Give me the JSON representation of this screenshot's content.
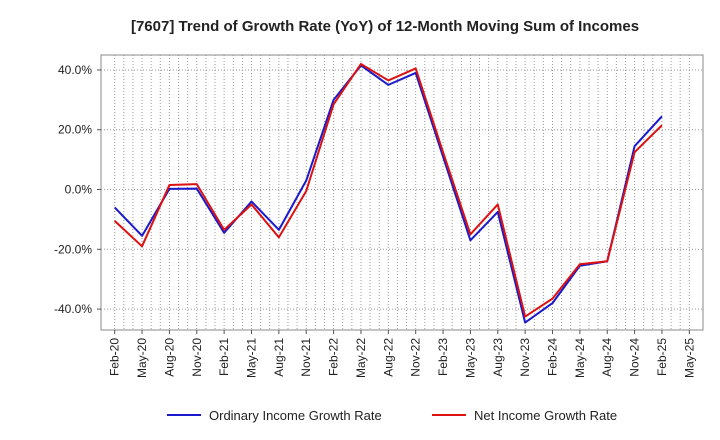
{
  "chart_data": {
    "type": "line",
    "title": "[7607]  Trend of Growth Rate (YoY) of 12-Month Moving Sum of Incomes",
    "xlabel": "",
    "ylabel": "",
    "x_tick_labels": [
      "Feb-20",
      "May-20",
      "Aug-20",
      "Nov-20",
      "Feb-21",
      "May-21",
      "Aug-21",
      "Nov-21",
      "Feb-22",
      "May-22",
      "Aug-22",
      "Nov-22",
      "Feb-23",
      "May-23",
      "Aug-23",
      "Nov-23",
      "Feb-24",
      "May-24",
      "Aug-24",
      "Nov-24",
      "Feb-25",
      "May-25"
    ],
    "y_ticks": [
      40,
      20,
      0,
      -20,
      -40
    ],
    "y_tick_labels": [
      "40.0%",
      "20.0%",
      "0.0%",
      "-20.0%",
      "-40.0%"
    ],
    "ylim": [
      -47,
      45
    ],
    "grid": true,
    "legend_position": "bottom",
    "series": [
      {
        "name": "Ordinary Income Growth Rate",
        "color": "#1a1acc",
        "values": [
          -6.0,
          -15.5,
          0.2,
          0.3,
          -14.5,
          -4.0,
          -13.5,
          3.0,
          30.0,
          41.5,
          35.0,
          39.0,
          11.0,
          -17.0,
          -7.5,
          -44.5,
          -38.0,
          -25.5,
          -24.0,
          14.5,
          24.5
        ]
      },
      {
        "name": "Net Income Growth Rate",
        "color": "#dd1111",
        "values": [
          -10.5,
          -19.0,
          1.5,
          1.8,
          -13.5,
          -5.0,
          -16.0,
          -0.5,
          28.5,
          42.0,
          36.5,
          40.5,
          12.5,
          -15.0,
          -5.0,
          -42.5,
          -36.5,
          -25.0,
          -24.0,
          12.5,
          21.5
        ]
      }
    ]
  }
}
